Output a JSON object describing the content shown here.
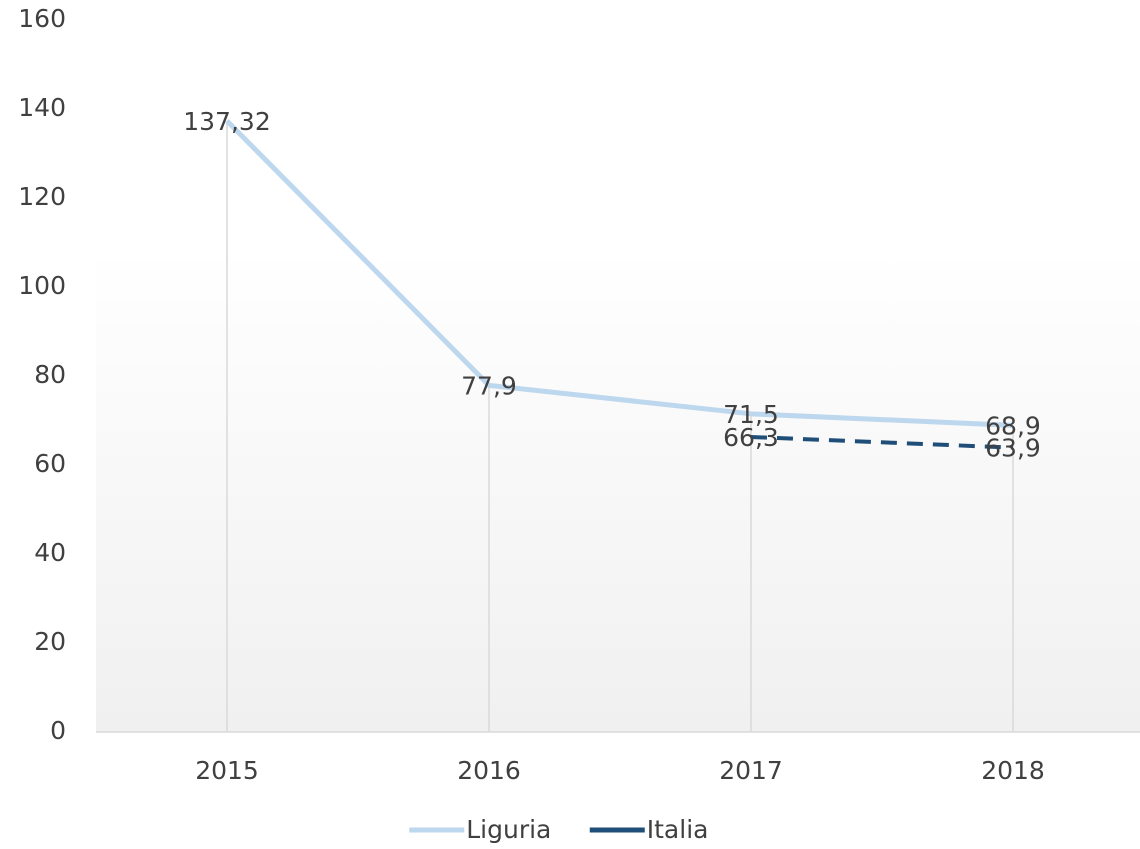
{
  "chart_data": {
    "type": "line",
    "categories": [
      "2015",
      "2016",
      "2017",
      "2018"
    ],
    "series": [
      {
        "name": "Liguria",
        "color": "#bdd7ee",
        "values": [
          137.32,
          77.9,
          71.5,
          68.9
        ],
        "value_labels": [
          "137,32",
          "77,9",
          "71,5",
          "68,9"
        ]
      },
      {
        "name": "Italia",
        "color": "#1f4e79",
        "dashed": true,
        "values": [
          null,
          null,
          66.3,
          63.9
        ],
        "value_labels": [
          null,
          null,
          "66,3",
          "63,9"
        ]
      }
    ],
    "ylim": [
      0,
      160
    ],
    "yticks": [
      0,
      20,
      40,
      60,
      80,
      100,
      120,
      140,
      160
    ],
    "grid": false,
    "legend": "bottom"
  }
}
